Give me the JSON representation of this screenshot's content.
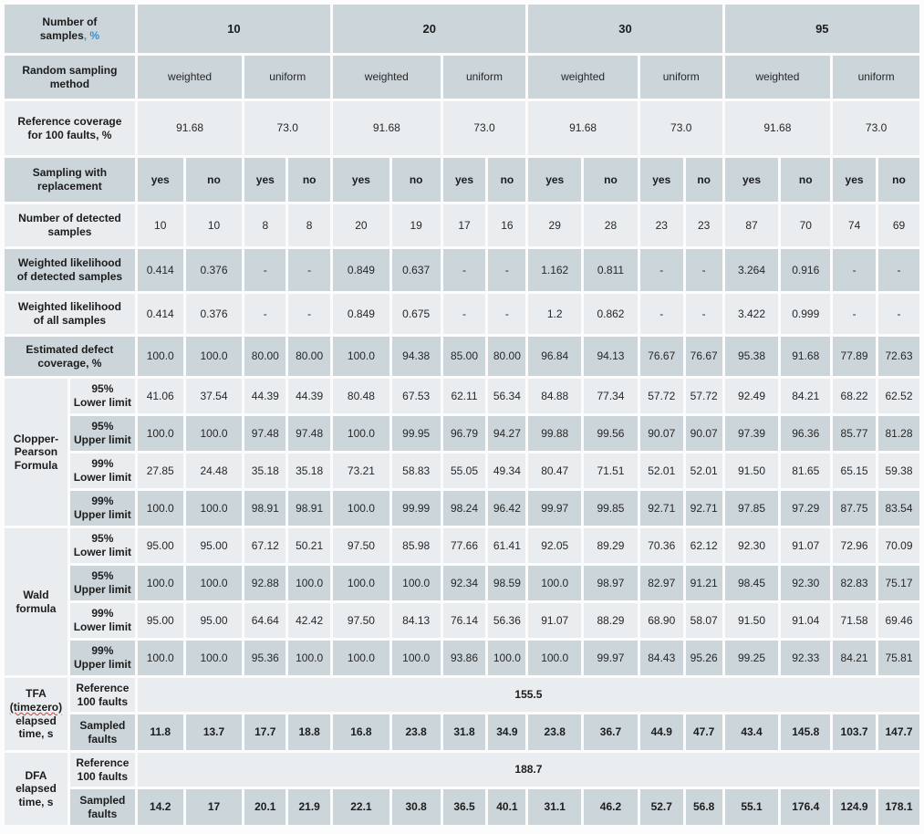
{
  "colors": {
    "band_dark": "#ccd6da",
    "band_light": "#e9edf0",
    "accent_blue": "#2d93d6",
    "squiggle_red": "#e03b24"
  },
  "table": {
    "rows": [
      {
        "id": "samples",
        "shade": "dark",
        "bold": true,
        "label": {
          "text": "Number of\nsamples",
          "suffix": ", %"
        },
        "cells": [
          {
            "t": "10",
            "span": 4
          },
          {
            "t": "20",
            "span": 4
          },
          {
            "t": "30",
            "span": 4
          },
          {
            "t": "95",
            "span": 4
          }
        ]
      },
      {
        "id": "method",
        "shade": "dark",
        "label": {
          "text": "Random sampling\nmethod"
        },
        "cells": [
          {
            "t": "weighted",
            "span": 2
          },
          {
            "t": "uniform",
            "span": 2
          },
          {
            "t": "weighted",
            "span": 2
          },
          {
            "t": "uniform",
            "span": 2
          },
          {
            "t": "weighted",
            "span": 2
          },
          {
            "t": "uniform",
            "span": 2
          },
          {
            "t": "weighted",
            "span": 2
          },
          {
            "t": "uniform",
            "span": 2
          }
        ]
      },
      {
        "id": "refcov",
        "shade": "light",
        "label": {
          "text": "Reference coverage\nfor 100 faults, %"
        },
        "cells": [
          {
            "t": "91.68",
            "span": 2
          },
          {
            "t": "73.0",
            "span": 2
          },
          {
            "t": "91.68",
            "span": 2
          },
          {
            "t": "73.0",
            "span": 2
          },
          {
            "t": "91.68",
            "span": 2
          },
          {
            "t": "73.0",
            "span": 2
          },
          {
            "t": "91.68",
            "span": 2
          },
          {
            "t": "73.0",
            "span": 2
          }
        ]
      },
      {
        "id": "replacement",
        "shade": "dark",
        "bold": true,
        "label": {
          "text": "Sampling with\nreplacement"
        },
        "cells": [
          "yes",
          "no",
          "yes",
          "no",
          "yes",
          "no",
          "yes",
          "no",
          "yes",
          "no",
          "yes",
          "no",
          "yes",
          "no",
          "yes",
          "no"
        ]
      },
      {
        "id": "detected",
        "shade": "light",
        "label": {
          "text": "Number of detected\nsamples"
        },
        "cells": [
          "10",
          "10",
          "8",
          "8",
          "20",
          "19",
          "17",
          "16",
          "29",
          "28",
          "23",
          "23",
          "87",
          "70",
          "74",
          "69"
        ]
      },
      {
        "id": "wl-detected",
        "shade": "dark",
        "label": {
          "text": "Weighted likelihood\nof detected samples"
        },
        "cells": [
          "0.414",
          "0.376",
          "-",
          "-",
          "0.849",
          "0.637",
          "-",
          "-",
          "1.162",
          "0.811",
          "-",
          "-",
          "3.264",
          "0.916",
          "-",
          "-"
        ]
      },
      {
        "id": "wl-all",
        "shade": "light",
        "label": {
          "text": "Weighted likelihood\nof all samples"
        },
        "cells": [
          "0.414",
          "0.376",
          "-",
          "-",
          "0.849",
          "0.675",
          "-",
          "-",
          "1.2",
          "0.862",
          "-",
          "-",
          "3.422",
          "0.999",
          "-",
          "-"
        ]
      },
      {
        "id": "est-coverage",
        "shade": "dark",
        "label": {
          "text": "Estimated defect\ncoverage, %"
        },
        "cells": [
          "100.0",
          "100.0",
          "80.00",
          "80.00",
          "100.0",
          "94.38",
          "85.00",
          "80.00",
          "96.84",
          "94.13",
          "76.67",
          "76.67",
          "95.38",
          "91.68",
          "77.89",
          "72.63"
        ]
      },
      {
        "id": "cp-95-lower",
        "shade": "light",
        "group": {
          "text": "Clopper-\nPearson\nFormula",
          "rowspan": 4
        },
        "sub": "95%\nLower limit",
        "cells": [
          "41.06",
          "37.54",
          "44.39",
          "44.39",
          "80.48",
          "67.53",
          "62.11",
          "56.34",
          "84.88",
          "77.34",
          "57.72",
          "57.72",
          "92.49",
          "84.21",
          "68.22",
          "62.52"
        ]
      },
      {
        "id": "cp-95-upper",
        "shade": "dark",
        "sub": "95%\nUpper limit",
        "cells": [
          "100.0",
          "100.0",
          "97.48",
          "97.48",
          "100.0",
          "99.95",
          "96.79",
          "94.27",
          "99.88",
          "99.56",
          "90.07",
          "90.07",
          "97.39",
          "96.36",
          "85.77",
          "81.28"
        ]
      },
      {
        "id": "cp-99-lower",
        "shade": "light",
        "sub": "99%\nLower limit",
        "cells": [
          "27.85",
          "24.48",
          "35.18",
          "35.18",
          "73.21",
          "58.83",
          "55.05",
          "49.34",
          "80.47",
          "71.51",
          "52.01",
          "52.01",
          "91.50",
          "81.65",
          "65.15",
          "59.38"
        ]
      },
      {
        "id": "cp-99-upper",
        "shade": "dark",
        "sub": "99%\nUpper limit",
        "cells": [
          "100.0",
          "100.0",
          "98.91",
          "98.91",
          "100.0",
          "99.99",
          "98.24",
          "96.42",
          "99.97",
          "99.85",
          "92.71",
          "92.71",
          "97.85",
          "97.29",
          "87.75",
          "83.54"
        ]
      },
      {
        "id": "wald-95-lower",
        "shade": "light",
        "group": {
          "text": "Wald\nformula",
          "rowspan": 4
        },
        "sub": "95%\nLower limit",
        "cells": [
          "95.00",
          "95.00",
          "67.12",
          "50.21",
          "97.50",
          "85.98",
          "77.66",
          "61.41",
          "92.05",
          "89.29",
          "70.36",
          "62.12",
          "92.30",
          "91.07",
          "72.96",
          "70.09"
        ]
      },
      {
        "id": "wald-95-upper",
        "shade": "dark",
        "sub": "95%\nUpper limit",
        "cells": [
          "100.0",
          "100.0",
          "92.88",
          "100.0",
          "100.0",
          "100.0",
          "92.34",
          "98.59",
          "100.0",
          "98.97",
          "82.97",
          "91.21",
          "98.45",
          "92.30",
          "82.83",
          "75.17"
        ]
      },
      {
        "id": "wald-99-lower",
        "shade": "light",
        "sub": "99%\nLower limit",
        "cells": [
          "95.00",
          "95.00",
          "64.64",
          "42.42",
          "97.50",
          "84.13",
          "76.14",
          "56.36",
          "91.07",
          "88.29",
          "68.90",
          "58.07",
          "91.50",
          "91.04",
          "71.58",
          "69.46"
        ]
      },
      {
        "id": "wald-99-upper",
        "shade": "dark",
        "sub": "99%\nUpper limit",
        "cells": [
          "100.0",
          "100.0",
          "95.36",
          "100.0",
          "100.0",
          "100.0",
          "93.86",
          "100.0",
          "100.0",
          "99.97",
          "84.43",
          "95.26",
          "99.25",
          "92.33",
          "84.21",
          "75.81"
        ]
      },
      {
        "id": "tfa-reference",
        "shade": "light",
        "bold": true,
        "group": {
          "lines": [
            "TFA",
            "(timezero)",
            "elapsed",
            "time, s"
          ],
          "rowspan": 2,
          "squiggle": 1
        },
        "sub": "Reference\n100 faults",
        "cells": [
          {
            "t": "155.5",
            "span": 16
          }
        ]
      },
      {
        "id": "tfa-sampled",
        "shade": "dark",
        "bold": true,
        "sub": "Sampled\nfaults",
        "cells": [
          "11.8",
          "13.7",
          "17.7",
          "18.8",
          "16.8",
          "23.8",
          "31.8",
          "34.9",
          "23.8",
          "36.7",
          "44.9",
          "47.7",
          "43.4",
          "145.8",
          "103.7",
          "147.7"
        ]
      },
      {
        "id": "dfa-reference",
        "shade": "light",
        "bold": true,
        "group": {
          "lines": [
            "DFA",
            "elapsed",
            "time, s"
          ],
          "rowspan": 2
        },
        "sub": "Reference\n100 faults",
        "cells": [
          {
            "t": "188.7",
            "span": 16
          }
        ]
      },
      {
        "id": "dfa-sampled",
        "shade": "dark",
        "bold": true,
        "sub": "Sampled\nfaults",
        "cells": [
          "14.2",
          "17",
          "20.1",
          "21.9",
          "22.1",
          "30.8",
          "36.5",
          "40.1",
          "31.1",
          "46.2",
          "52.7",
          "56.8",
          "55.1",
          "176.4",
          "124.9",
          "178.1"
        ]
      }
    ]
  }
}
